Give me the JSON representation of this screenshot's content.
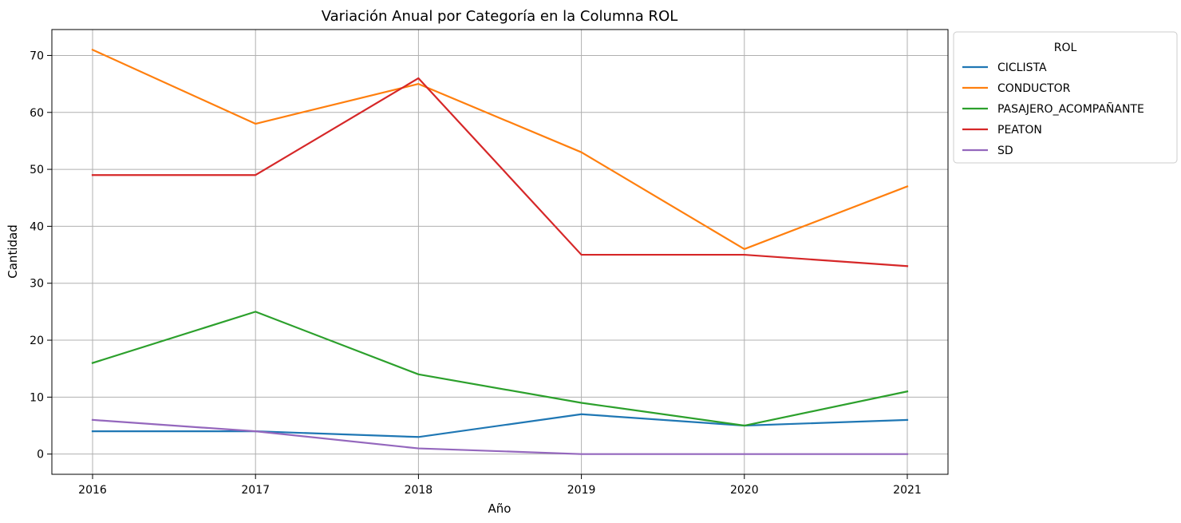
{
  "chart_data": {
    "type": "line",
    "title": "Variación Anual por Categoría en la Columna ROL",
    "xlabel": "Año",
    "ylabel": "Cantidad",
    "x": [
      2016,
      2017,
      2018,
      2019,
      2020,
      2021
    ],
    "ylim": [
      -3.55,
      74.55
    ],
    "yticks": [
      0,
      10,
      20,
      30,
      40,
      50,
      60,
      70
    ],
    "grid": true,
    "legend": {
      "title": "ROL",
      "placement": "outside-top-right"
    },
    "series": [
      {
        "name": "CICLISTA",
        "color": "#1f77b4",
        "values": [
          4,
          4,
          3,
          7,
          5,
          6
        ]
      },
      {
        "name": "CONDUCTOR",
        "color": "#ff7f0e",
        "values": [
          71,
          58,
          65,
          53,
          36,
          47
        ]
      },
      {
        "name": "PASAJERO_ACOMPAÑANTE",
        "color": "#2ca02c",
        "values": [
          16,
          25,
          14,
          9,
          5,
          11
        ]
      },
      {
        "name": "PEATON",
        "color": "#d62728",
        "values": [
          49,
          49,
          66,
          35,
          35,
          33
        ]
      },
      {
        "name": "SD",
        "color": "#9467bd",
        "values": [
          6,
          4,
          1,
          0,
          0,
          0
        ]
      }
    ]
  }
}
